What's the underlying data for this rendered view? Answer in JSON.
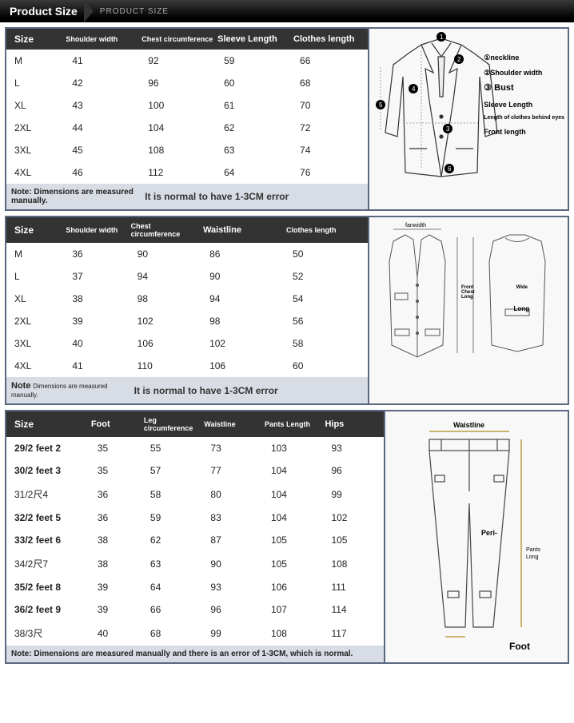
{
  "header": {
    "title": "Product Size",
    "sub": "PRODUCT SIZE"
  },
  "jacket": {
    "columns": [
      "Size",
      "Shoulder width",
      "Chest circumference",
      "Sleeve Length",
      "Clothes length"
    ],
    "rows": [
      {
        "size": "M",
        "shoulder": "41",
        "chest": "92",
        "sleeve": "59",
        "length": "66"
      },
      {
        "size": "L",
        "shoulder": "42",
        "chest": "96",
        "sleeve": "60",
        "length": "68"
      },
      {
        "size": "XL",
        "shoulder": "43",
        "chest": "100",
        "sleeve": "61",
        "length": "70"
      },
      {
        "size": "2XL",
        "shoulder": "44",
        "chest": "104",
        "sleeve": "62",
        "length": "72"
      },
      {
        "size": "3XL",
        "shoulder": "45",
        "chest": "108",
        "sleeve": "63",
        "length": "74"
      },
      {
        "size": "4XL",
        "shoulder": "46",
        "chest": "112",
        "sleeve": "64",
        "length": "76"
      }
    ],
    "note1": "Note: Dimensions are measured manually.",
    "note2": "It is normal to have 1-3CM error",
    "labels": [
      "①neckline",
      "②Shoulder width",
      "③ Bust",
      "Sleeve Length",
      "Length of clothes behind eyes",
      "Front length"
    ]
  },
  "vest": {
    "columns": [
      "Size",
      "Shoulder width",
      "Chest circumference",
      "Waistline",
      "Clothes length"
    ],
    "rows": [
      {
        "size": "M",
        "shoulder": "36",
        "chest": "90",
        "waist": "86",
        "length": "50"
      },
      {
        "size": "L",
        "shoulder": "37",
        "chest": "94",
        "waist": "90",
        "length": "52"
      },
      {
        "size": "XL",
        "shoulder": "38",
        "chest": "98",
        "waist": "94",
        "length": "54"
      },
      {
        "size": "2XL",
        "shoulder": "39",
        "chest": "102",
        "waist": "98",
        "length": "56"
      },
      {
        "size": "3XL",
        "shoulder": "40",
        "chest": "106",
        "waist": "102",
        "length": "58"
      },
      {
        "size": "4XL",
        "shoulder": "41",
        "chest": "110",
        "waist": "106",
        "length": "60"
      }
    ],
    "note1a": "Note",
    "note1b": "Dimensions are measured manually.",
    "note2": "It is normal to have 1-3CM error",
    "diagram_labels": {
      "fanwidth": "fanwidth",
      "front": "Front",
      "chest": "Chest",
      "long": "Long",
      "wide": "Wide"
    }
  },
  "pants": {
    "columns": [
      "Size",
      "Foot",
      "Leg circumference",
      "Waistline",
      "Pants Length",
      "Hips"
    ],
    "rows": [
      {
        "size": "29/2 feet 2",
        "foot": "35",
        "leg": "55",
        "waist": "73",
        "length": "103",
        "hips": "93"
      },
      {
        "size": "30/2 feet 3",
        "foot": "35",
        "leg": "57",
        "waist": "77",
        "length": "104",
        "hips": "96"
      },
      {
        "size": "31/2尺4",
        "foot": "36",
        "leg": "58",
        "waist": "80",
        "length": "104",
        "hips": "99"
      },
      {
        "size": "32/2 feet 5",
        "foot": "36",
        "leg": "59",
        "waist": "83",
        "length": "104",
        "hips": "102"
      },
      {
        "size": "33/2 feet 6",
        "foot": "38",
        "leg": "62",
        "waist": "87",
        "length": "105",
        "hips": "105"
      },
      {
        "size": "34/2尺7",
        "foot": "38",
        "leg": "63",
        "waist": "90",
        "length": "105",
        "hips": "108"
      },
      {
        "size": "35/2 feet 8",
        "foot": "39",
        "leg": "64",
        "waist": "93",
        "length": "106",
        "hips": "111"
      },
      {
        "size": "36/2 feet 9",
        "foot": "39",
        "leg": "66",
        "waist": "96",
        "length": "107",
        "hips": "114"
      },
      {
        "size": "38/3尺",
        "foot": "40",
        "leg": "68",
        "waist": "99",
        "length": "108",
        "hips": "117"
      }
    ],
    "note": "Note: Dimensions are measured manually and there is an error of 1-3CM, which is normal.",
    "diagram_labels": {
      "waistline": "Waistline",
      "peri": "Peri-",
      "long": "Pants Long",
      "foot": "Foot"
    }
  },
  "colors": {
    "border": "#5a6880",
    "header_bg": "#333333",
    "note_bg": "#d8dce4"
  }
}
